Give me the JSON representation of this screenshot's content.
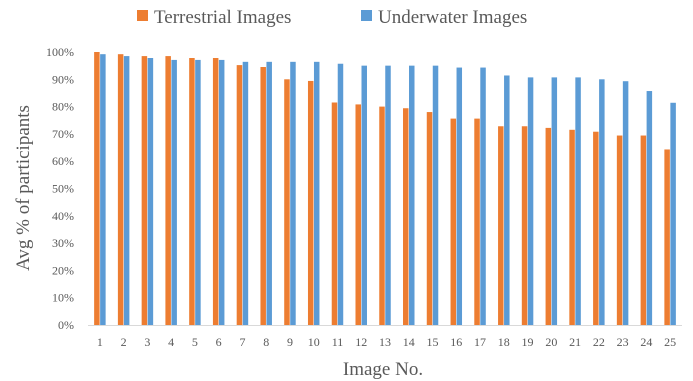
{
  "chart_data": {
    "type": "bar",
    "title": "",
    "xlabel": "Image No.",
    "ylabel": "Avg % of participants",
    "ylim": [
      0,
      100
    ],
    "ytick_step": 10,
    "ytick_suffix": "%",
    "grid": false,
    "legend": "top-center",
    "categories": [
      "1",
      "2",
      "3",
      "4",
      "5",
      "6",
      "7",
      "8",
      "9",
      "10",
      "11",
      "12",
      "13",
      "14",
      "15",
      "16",
      "17",
      "18",
      "19",
      "20",
      "21",
      "22",
      "23",
      "24",
      "25"
    ],
    "series": [
      {
        "name": "Terrestrial Images",
        "color": "#ED7D31",
        "values": [
          100,
          99.2,
          98.5,
          98.5,
          97.8,
          97.8,
          95.2,
          94.5,
          90,
          89.4,
          81.5,
          80.8,
          80,
          79.4,
          78,
          75.6,
          75.6,
          72.8,
          72.8,
          72.2,
          71.5,
          70.8,
          69.4,
          69.4,
          64.3
        ]
      },
      {
        "name": "Underwater Images",
        "color": "#5B9BD5",
        "values": [
          99.2,
          98.5,
          97.8,
          97.1,
          97.1,
          97.1,
          96.4,
          96.4,
          96.4,
          96.4,
          95.7,
          95,
          95,
          95,
          95,
          94.3,
          94.3,
          91.4,
          90.7,
          90.7,
          90.7,
          90,
          89.3,
          85.7,
          81.4
        ]
      }
    ]
  }
}
